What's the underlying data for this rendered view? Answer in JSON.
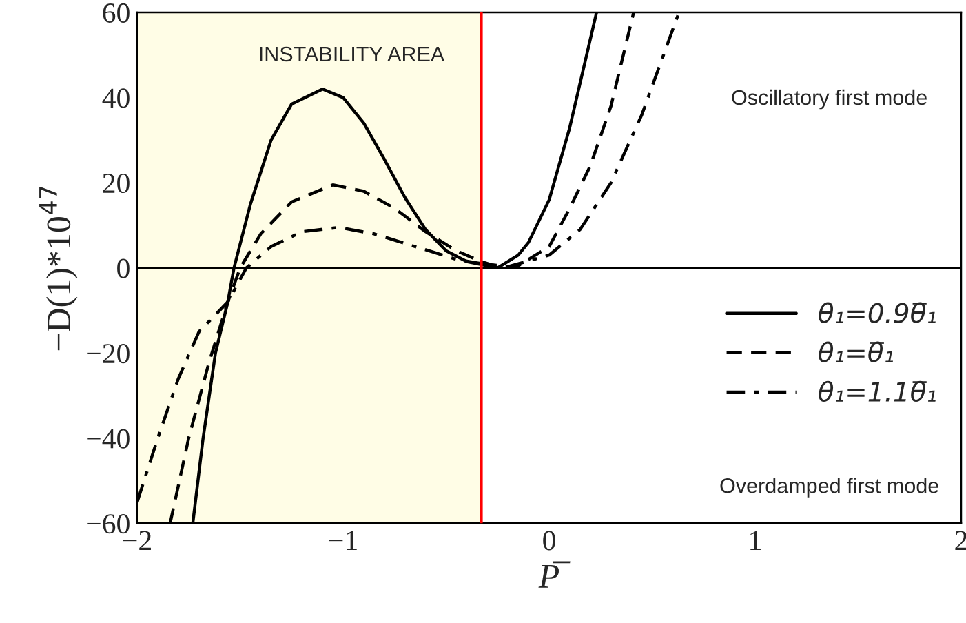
{
  "chart_data": {
    "type": "line",
    "xlabel": "P̅",
    "ylabel": "−D(1)*10$^{47}$",
    "xlim": [
      -2,
      2
    ],
    "ylim": [
      -60,
      60
    ],
    "xticks": [
      {
        "value": -2,
        "label": "−2"
      },
      {
        "value": -1,
        "label": "−1"
      },
      0,
      1,
      2
    ],
    "yticks": [
      {
        "value": -60,
        "label": "−60"
      },
      {
        "value": -40,
        "label": "−40"
      },
      {
        "value": -20,
        "label": "−20"
      },
      0,
      20,
      40,
      60
    ],
    "grid": false,
    "legend": "right",
    "marker": "none",
    "series": [
      {
        "name": "θ₁=0.9θ̅₁",
        "color": "#000000",
        "line_style": "solid",
        "x": [
          -1.73,
          -1.68,
          -1.62,
          -1.56,
          -1.53,
          -1.45,
          -1.35,
          -1.25,
          -1.1,
          -1.0,
          -0.9,
          -0.8,
          -0.7,
          -0.6,
          -0.5,
          -0.4,
          -0.33,
          -0.25,
          -0.15,
          -0.1,
          0,
          0.1,
          0.23
        ],
        "values": [
          -60,
          -40,
          -20,
          -8,
          0,
          15,
          30,
          38.5,
          42,
          40,
          34,
          25.5,
          16.5,
          9,
          4,
          1.5,
          0.8,
          0,
          3,
          6,
          16,
          33,
          60
        ]
      },
      {
        "name": "θ₁=θ̅₁",
        "color": "#000000",
        "line_style": "dashed",
        "x": [
          -1.84,
          -1.75,
          -1.65,
          -1.56,
          -1.5,
          -1.4,
          -1.25,
          -1.05,
          -0.9,
          -0.75,
          -0.6,
          -0.45,
          -0.33,
          -0.25,
          -0.15,
          0,
          0.1,
          0.2,
          0.3,
          0.41
        ],
        "values": [
          -60,
          -40,
          -22,
          -8,
          0,
          8,
          15.5,
          19.5,
          18,
          14,
          8.5,
          4,
          1.5,
          0.3,
          0.5,
          5,
          14,
          24,
          38,
          60
        ]
      },
      {
        "name": "θ₁=1.1θ̅₁",
        "color": "#000000",
        "line_style": "dashdot",
        "x": [
          -2.0,
          -1.9,
          -1.8,
          -1.7,
          -1.56,
          -1.47,
          -1.35,
          -1.2,
          -1.02,
          -0.85,
          -0.65,
          -0.45,
          -0.33,
          -0.2,
          0,
          0.15,
          0.3,
          0.45,
          0.63
        ],
        "values": [
          -55,
          -40,
          -26,
          -15,
          -8,
          0,
          5,
          8.5,
          9.5,
          8,
          5,
          2,
          1,
          0.3,
          3,
          9,
          20,
          36,
          60
        ]
      }
    ],
    "bands": [
      {
        "axis": "x",
        "from": -2,
        "to": -0.33,
        "color": "#fffde6"
      }
    ],
    "ref_lines": [
      {
        "axis": "x",
        "value": -0.33,
        "color": "#ff0000"
      },
      {
        "axis": "y",
        "value": 0,
        "color": "#000000"
      }
    ],
    "annotations": [
      "INSTABILITY AREA",
      "Oscillatory first mode",
      "Overdamped first mode"
    ]
  }
}
